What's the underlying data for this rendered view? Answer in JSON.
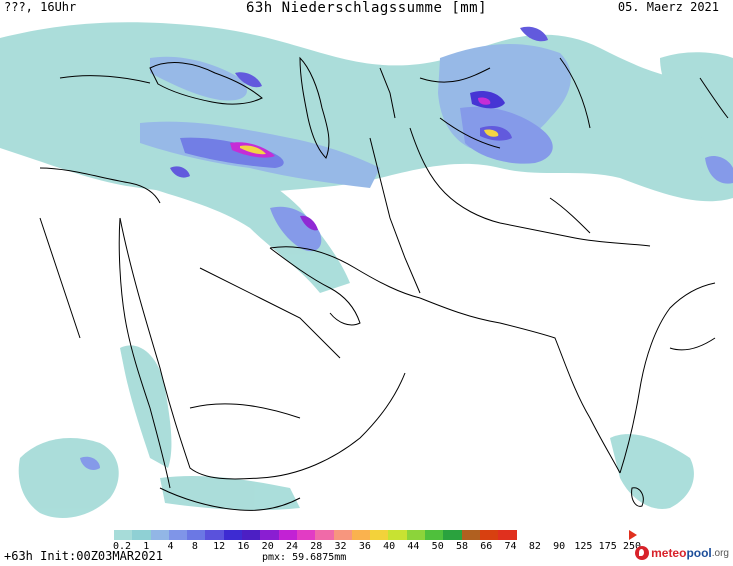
{
  "header": {
    "left": "???, 16Uhr",
    "title": "63h Niederschlagssumme [mm]",
    "date": "05. Maerz 2021"
  },
  "legend": {
    "labels": [
      "0.2",
      "1",
      "4",
      "8",
      "12",
      "16",
      "20",
      "24",
      "28",
      "32",
      "36",
      "40",
      "44",
      "50",
      "58",
      "66",
      "74",
      "82",
      "90",
      "125",
      "175",
      "250"
    ],
    "colors": [
      "#a7dcd9",
      "#8fd0d4",
      "#92b6e6",
      "#7f95e8",
      "#6b78e4",
      "#5a52dc",
      "#3d2bd2",
      "#4c1fc4",
      "#8a1ed2",
      "#c222d4",
      "#e23cc4",
      "#f06aa8",
      "#f7967e",
      "#fab24e",
      "#f3d23a",
      "#c8e232",
      "#8cd43a",
      "#4fc03c",
      "#2aa23e",
      "#b06020",
      "#d84010",
      "#e0301e"
    ]
  },
  "footer": {
    "init": "+63h Init:00Z03MAR2021",
    "pmx": "pmx: 59.6875mm",
    "logo_meteo": "meteo",
    "logo_pool": "pool",
    "logo_org": ".org"
  }
}
